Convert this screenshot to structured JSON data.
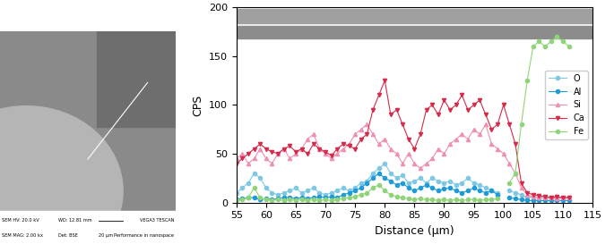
{
  "chart_data": {
    "type": "line",
    "x_label": "Distance (μm)",
    "y_label": "CPS",
    "x": [
      55,
      56,
      57,
      58,
      59,
      60,
      61,
      62,
      63,
      64,
      65,
      66,
      67,
      68,
      69,
      70,
      71,
      72,
      73,
      74,
      75,
      76,
      77,
      78,
      79,
      80,
      81,
      82,
      83,
      84,
      85,
      86,
      87,
      88,
      89,
      90,
      91,
      92,
      93,
      94,
      95,
      96,
      97,
      98,
      99,
      100,
      101,
      102,
      103,
      104,
      105,
      106,
      107,
      108,
      109,
      110,
      111
    ],
    "series": [
      {
        "name": "O",
        "color": "#7ec8e3",
        "marker": "o",
        "values": [
          10,
          15,
          20,
          30,
          25,
          15,
          10,
          8,
          10,
          12,
          15,
          10,
          12,
          15,
          10,
          8,
          10,
          12,
          15,
          12,
          15,
          20,
          22,
          30,
          35,
          40,
          30,
          25,
          28,
          20,
          22,
          25,
          20,
          25,
          22,
          20,
          22,
          18,
          20,
          25,
          20,
          18,
          15,
          12,
          10,
          null,
          12,
          10,
          8,
          5,
          6,
          5,
          5,
          4,
          5,
          4,
          5
        ]
      },
      {
        "name": "Al",
        "color": "#1f9bd7",
        "marker": "o",
        "values": [
          3,
          4,
          5,
          5,
          3,
          4,
          3,
          4,
          5,
          5,
          4,
          5,
          4,
          5,
          6,
          5,
          6,
          5,
          8,
          10,
          12,
          15,
          20,
          25,
          30,
          25,
          22,
          18,
          20,
          15,
          12,
          15,
          18,
          15,
          12,
          14,
          15,
          12,
          10,
          12,
          15,
          12,
          10,
          12,
          8,
          null,
          5,
          4,
          3,
          2,
          2,
          2,
          2,
          2,
          2,
          2,
          2
        ]
      },
      {
        "name": "Si",
        "color": "#ee8fb4",
        "marker": "^",
        "values": [
          45,
          50,
          40,
          45,
          55,
          45,
          40,
          50,
          55,
          45,
          50,
          55,
          65,
          70,
          55,
          50,
          45,
          50,
          55,
          60,
          70,
          75,
          80,
          70,
          60,
          65,
          55,
          50,
          40,
          50,
          40,
          35,
          40,
          45,
          55,
          50,
          60,
          65,
          70,
          65,
          75,
          70,
          80,
          60,
          55,
          50,
          40,
          30,
          15,
          8,
          6,
          5,
          5,
          5,
          4,
          5,
          5
        ]
      },
      {
        "name": "Ca",
        "color": "#d62a4a",
        "marker": "v",
        "values": [
          40,
          45,
          50,
          55,
          60,
          55,
          52,
          50,
          55,
          58,
          52,
          55,
          50,
          60,
          55,
          52,
          48,
          55,
          60,
          58,
          55,
          65,
          70,
          95,
          110,
          125,
          90,
          95,
          80,
          65,
          55,
          70,
          95,
          100,
          90,
          105,
          95,
          100,
          110,
          95,
          100,
          105,
          90,
          75,
          80,
          100,
          80,
          60,
          20,
          10,
          8,
          7,
          6,
          5,
          6,
          5,
          5
        ]
      },
      {
        "name": "Fe",
        "color": "#90d47a",
        "marker": "o",
        "values": [
          2,
          3,
          5,
          15,
          5,
          3,
          2,
          3,
          2,
          3,
          2,
          3,
          2,
          3,
          2,
          3,
          2,
          3,
          4,
          5,
          6,
          8,
          10,
          15,
          18,
          12,
          8,
          6,
          5,
          4,
          3,
          4,
          3,
          3,
          2,
          3,
          2,
          3,
          2,
          3,
          3,
          2,
          3,
          3,
          4,
          null,
          20,
          30,
          80,
          125,
          160,
          165,
          160,
          165,
          170,
          165,
          160
        ]
      }
    ],
    "xlim": [
      55,
      115
    ],
    "xticks": [
      55,
      60,
      65,
      70,
      75,
      80,
      85,
      90,
      95,
      100,
      105,
      110,
      115
    ],
    "ylim": [
      0,
      200
    ],
    "yticks": [
      0,
      50,
      100,
      150,
      200
    ],
    "legend": "center right"
  },
  "micrograph": {
    "row1": [
      "SEM HV: 20.0 kV",
      "WD: 12.81 mm",
      "VEGA3 TESCAN"
    ],
    "row2": [
      "SEM MAG: 2.00 kx",
      "Det: BSE",
      "20 μm",
      "Performance in nanospace"
    ]
  }
}
